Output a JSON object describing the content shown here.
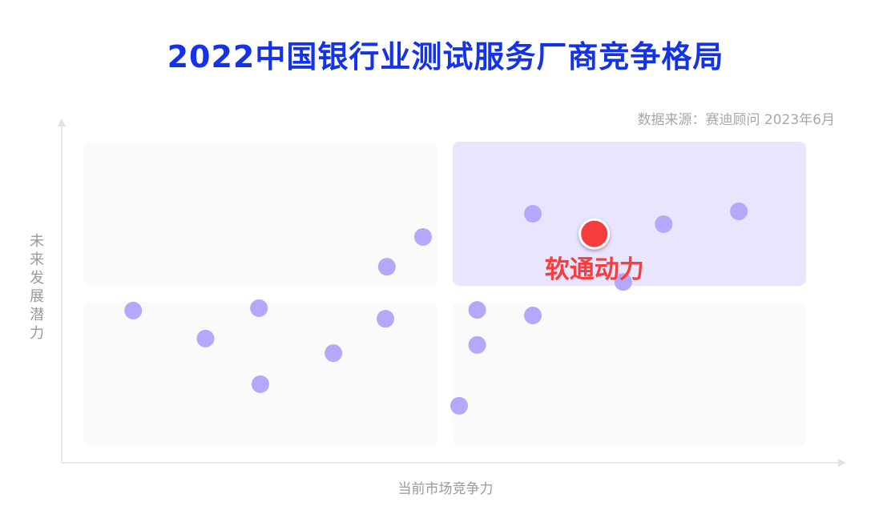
{
  "chart_data": {
    "type": "scatter",
    "title": "2022中国银行业测试服务厂商竞争格局",
    "source": "数据来源：赛迪顾问 2023年6月",
    "xlabel": "当前市场竞争力",
    "ylabel": "未来发展潜力",
    "xlim": [
      0,
      100
    ],
    "ylim": [
      0,
      100
    ],
    "quadrant_split": [
      50,
      50
    ],
    "grid": false,
    "colors": {
      "point": "#b4a8fa",
      "highlight": "#f63e3e",
      "highlight_quadrant": "#eae5ff",
      "quadrant": "#fafafa",
      "title": "#1432e8"
    },
    "points": [
      {
        "x": 6.9,
        "y": 44.5
      },
      {
        "x": 16.9,
        "y": 35.3
      },
      {
        "x": 24.3,
        "y": 45.3
      },
      {
        "x": 24.5,
        "y": 20.3
      },
      {
        "x": 34.6,
        "y": 30.5
      },
      {
        "x": 41.8,
        "y": 41.8
      },
      {
        "x": 42.0,
        "y": 58.9
      },
      {
        "x": 47.0,
        "y": 68.7
      },
      {
        "x": 54.5,
        "y": 44.7
      },
      {
        "x": 54.5,
        "y": 33.2
      },
      {
        "x": 52.0,
        "y": 13.2
      },
      {
        "x": 62.2,
        "y": 42.9
      },
      {
        "x": 62.2,
        "y": 76.3
      },
      {
        "x": 74.7,
        "y": 53.9
      },
      {
        "x": 80.3,
        "y": 72.9
      },
      {
        "x": 90.7,
        "y": 77.1
      }
    ],
    "highlight": {
      "label": "软通动力",
      "x": 70.7,
      "y": 69.7
    }
  }
}
